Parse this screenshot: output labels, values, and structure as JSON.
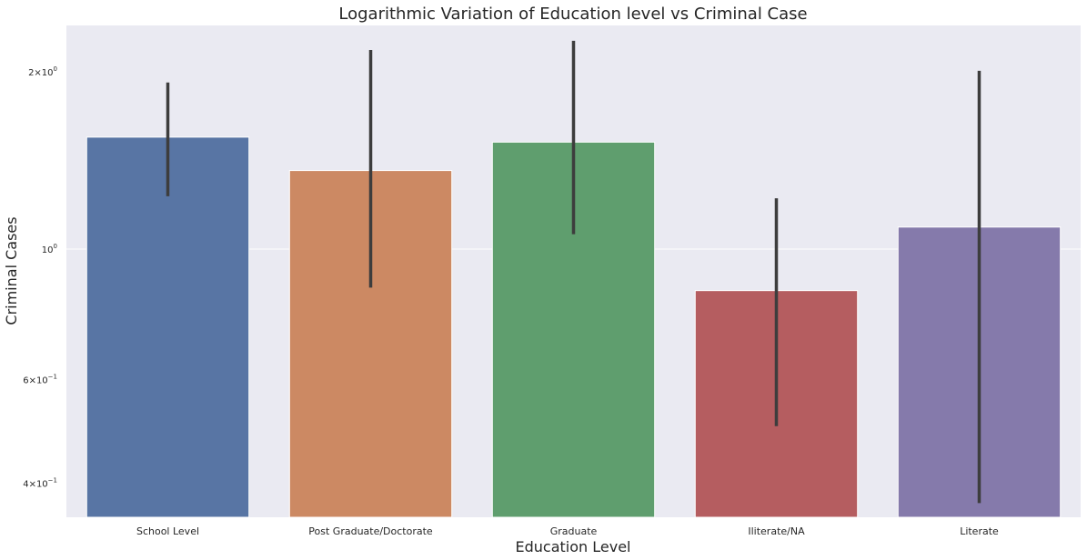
{
  "chart_data": {
    "type": "bar",
    "title": "Logarithmic Variation of Education level vs Criminal Case",
    "xlabel": "Education Level",
    "ylabel": "Criminal Cases",
    "yscale": "log",
    "ylim": [
      0.35,
      2.4
    ],
    "grid": true,
    "legend": "none",
    "categories": [
      "School Level",
      "Post Graduate/Doctorate",
      "Graduate",
      "Iliterate/NA",
      "Literate"
    ],
    "values": [
      1.55,
      1.36,
      1.52,
      0.85,
      1.09
    ],
    "error_low": [
      1.23,
      0.86,
      1.06,
      0.5,
      0.37
    ],
    "error_high": [
      1.92,
      2.18,
      2.26,
      1.22,
      2.01
    ],
    "colors": [
      "#5875a4",
      "#cc8963",
      "#5f9e6e",
      "#b55d60",
      "#857aab"
    ],
    "yticks": [
      {
        "value": 0.4,
        "mantissa": "4",
        "exponent": "-1"
      },
      {
        "value": 0.6,
        "mantissa": "6",
        "exponent": "-1"
      },
      {
        "value": 1.0,
        "mantissa": "",
        "exponent": "0"
      },
      {
        "value": 2.0,
        "mantissa": "2",
        "exponent": "0"
      }
    ]
  }
}
